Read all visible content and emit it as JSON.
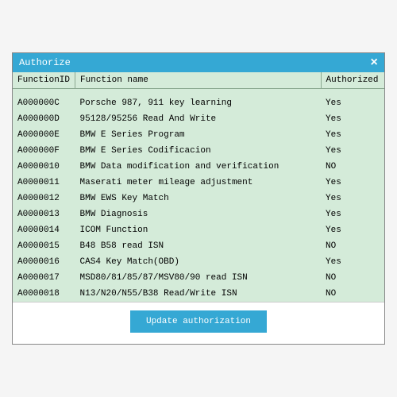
{
  "window": {
    "title": "Authorize"
  },
  "table": {
    "headers": {
      "id": "FunctionID",
      "name": "Function name",
      "auth": "Authorized"
    },
    "rows": [
      {
        "id": "",
        "name": "",
        "auth": ""
      },
      {
        "id": "A000000C",
        "name": "Porsche 987, 911 key learning",
        "auth": "Yes"
      },
      {
        "id": "A000000D",
        "name": "95128/95256 Read And Write",
        "auth": "Yes"
      },
      {
        "id": "A000000E",
        "name": "BMW E Series Program",
        "auth": "Yes"
      },
      {
        "id": "A000000F",
        "name": "BMW E Series Codificacion",
        "auth": "Yes"
      },
      {
        "id": "A0000010",
        "name": "BMW Data modification and verification",
        "auth": "NO"
      },
      {
        "id": "A0000011",
        "name": "Maserati meter mileage adjustment",
        "auth": "Yes"
      },
      {
        "id": "A0000012",
        "name": "BMW EWS Key Match",
        "auth": "Yes"
      },
      {
        "id": "A0000013",
        "name": "BMW Diagnosis",
        "auth": "Yes"
      },
      {
        "id": "A0000014",
        "name": "ICOM Function",
        "auth": "Yes"
      },
      {
        "id": "A0000015",
        "name": "B48 B58 read ISN",
        "auth": "NO"
      },
      {
        "id": "A0000016",
        "name": "CAS4 Key Match(OBD)",
        "auth": "Yes"
      },
      {
        "id": "A0000017",
        "name": "MSD80/81/85/87/MSV80/90 read ISN",
        "auth": "NO"
      },
      {
        "id": "A0000018",
        "name": "N13/N20/N55/B38 Read/Write ISN",
        "auth": "NO"
      }
    ]
  },
  "footer": {
    "update_label": "Update authorization"
  },
  "colors": {
    "titlebar_bg": "#35a8d4",
    "content_bg": "#d4ebd9",
    "footer_bg": "#ffffff",
    "button_bg": "#35a8d4"
  }
}
